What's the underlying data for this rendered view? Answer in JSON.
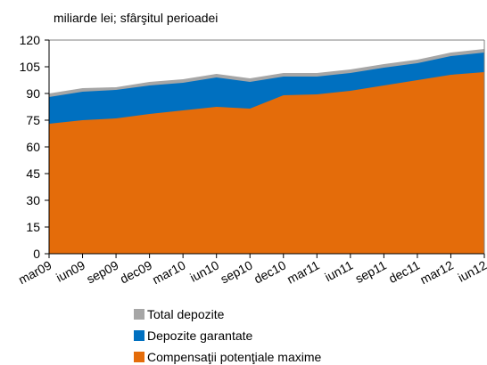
{
  "chart_data": {
    "type": "area",
    "subtitle": "miliarde lei; sfârşitul perioadei",
    "categories": [
      "mar09",
      "iun09",
      "sep09",
      "dec09",
      "mar10",
      "iun10",
      "sep10",
      "dec10",
      "mar11",
      "iun11",
      "sep11",
      "dec11",
      "mar12",
      "iun12"
    ],
    "series": [
      {
        "name": "Total depozite",
        "color": "#a6a6a6",
        "values": [
          90,
          93,
          93.5,
          96.5,
          98,
          101,
          98.5,
          101.5,
          101.5,
          103.5,
          106.5,
          109,
          113,
          115
        ]
      },
      {
        "name": "Depozite garantate",
        "color": "#0070c0",
        "values": [
          88,
          91,
          92,
          94.5,
          96,
          99,
          96.5,
          99.5,
          99.5,
          101.5,
          104.5,
          107,
          111,
          113
        ]
      },
      {
        "name": "Compensaţii potenţiale maxime",
        "color": "#e46c0a",
        "values": [
          73,
          75,
          76,
          78.5,
          80.5,
          82.5,
          81.5,
          89,
          89.5,
          91.5,
          94.5,
          97.5,
          100.5,
          102
        ]
      }
    ],
    "ylim": [
      0,
      120
    ],
    "yticks": [
      0,
      15,
      30,
      45,
      60,
      75,
      90,
      105,
      120
    ],
    "grid": false
  }
}
